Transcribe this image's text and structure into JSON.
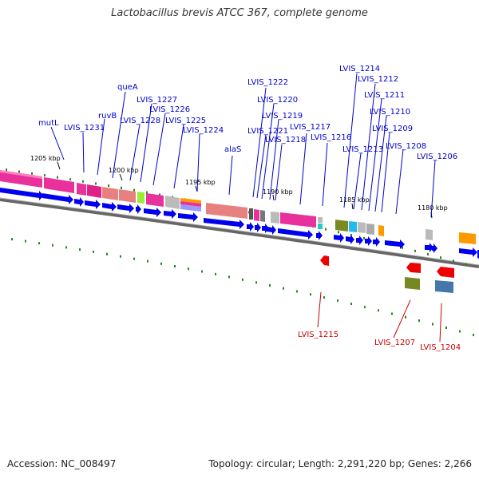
{
  "title": "Lactobacillus brevis ATCC 367, complete genome",
  "footer": {
    "accession": "Accession: NC_008497",
    "summary": "Topology: circular; Length: 2,291,220 bp; Genes: 2,266"
  },
  "colors": {
    "label_blue": "#0000cc",
    "label_red": "#cc0000",
    "strand_arrow": "#0000ee",
    "tick_green": "#228822"
  },
  "ruler": [
    "1205 kbp",
    "1200 kbp",
    "1195 kbp",
    "1190 kbp",
    "1185 kbp",
    "1180 kbp"
  ],
  "labels_top": [
    "mutL",
    "LVIS_1231",
    "ruvB",
    "queA",
    "LVIS_1228",
    "LVIS_1227",
    "LVIS_1226",
    "LVIS_1225",
    "LVIS_1224",
    "alaS",
    "LVIS_1222",
    "LVIS_1221",
    "LVIS_1220",
    "LVIS_1219",
    "LVIS_1218",
    "LVIS_1217",
    "LVIS_1216",
    "LVIS_1214",
    "LVIS_1213",
    "LVIS_1212",
    "LVIS_1211",
    "LVIS_1210",
    "LVIS_1209",
    "LVIS_1208",
    "LVIS_1206"
  ],
  "labels_bottom": [
    "LVIS_1215",
    "LVIS_1207",
    "LVIS_1204"
  ]
}
